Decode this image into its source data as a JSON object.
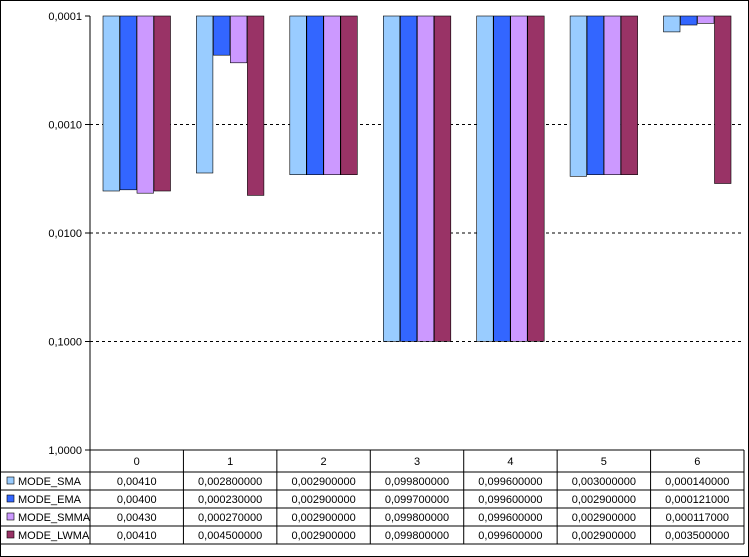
{
  "chart_data": {
    "type": "bar",
    "y_scale": "log-reversed",
    "y_ticks": [
      "0,0001",
      "0,0010",
      "0,0100",
      "0,1000",
      "1,0000"
    ],
    "ylim": [
      1.0,
      0.0001
    ],
    "grid": "dashed horizontal",
    "legend": "data-table-rows",
    "categories": [
      "0",
      "1",
      "2",
      "3",
      "4",
      "5",
      "6"
    ],
    "series": [
      {
        "name": "MODE_SMA",
        "color": "#99CCFF",
        "values": [
          0.0041,
          0.0028,
          0.0029,
          0.0998,
          0.0996,
          0.003,
          0.00014
        ],
        "labels": [
          "0,00410",
          "0,002800000",
          "0,002900000",
          "0,099800000",
          "0,099600000",
          "0,003000000",
          "0,000140000"
        ]
      },
      {
        "name": "MODE_EMA",
        "color": "#3366FF",
        "values": [
          0.004,
          0.00023,
          0.0029,
          0.0997,
          0.0996,
          0.0029,
          0.000121
        ],
        "labels": [
          "0,00400",
          "0,000230000",
          "0,002900000",
          "0,099700000",
          "0,099600000",
          "0,002900000",
          "0,000121000"
        ]
      },
      {
        "name": "MODE_SMMA",
        "color": "#CC99FF",
        "values": [
          0.0043,
          0.00027,
          0.0029,
          0.0998,
          0.0996,
          0.0029,
          0.000117
        ],
        "labels": [
          "0,00430",
          "0,000270000",
          "0,002900000",
          "0,099800000",
          "0,099600000",
          "0,002900000",
          "0,000117000"
        ]
      },
      {
        "name": "MODE_LWMA",
        "color": "#993366",
        "values": [
          0.0041,
          0.0045,
          0.0029,
          0.0998,
          0.0996,
          0.0029,
          0.0035
        ],
        "labels": [
          "0,00410",
          "0,004500000",
          "0,002900000",
          "0,099800000",
          "0,099600000",
          "0,002900000",
          "0,003500000"
        ]
      }
    ]
  }
}
